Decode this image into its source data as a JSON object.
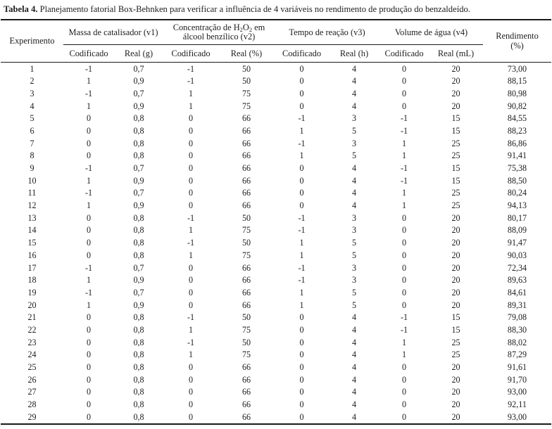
{
  "page": {
    "title_label": "Tabela 4.",
    "title_text": " Planejamento fatorial Box-Behnken para verificar a influência de 4 variáveis no rendimento de produção do benzaldeído."
  },
  "table": {
    "experiment_header": "Experimento",
    "group1": {
      "label": "Massa de catalisador (v1)",
      "sub1": "Codificado",
      "sub2": "Real (g)"
    },
    "group2": {
      "line1_prefix": "Concentração de H",
      "line1_sub1": "2",
      "line1_mid": "O",
      "line1_sub2": "2",
      "line1_suffix": " em",
      "line2": "álcool benzílico (v2)",
      "sub1": "Codificado",
      "sub2": "Real (%)"
    },
    "group3": {
      "label": "Tempo de reação (v3)",
      "sub1": "Codificado",
      "sub2": "Real (h)"
    },
    "group4": {
      "label": "Volume de água (v4)",
      "sub1": "Codificado",
      "sub2": "Real (mL)"
    },
    "yield_header_line1": "Rendimento",
    "yield_header_line2": "(%)",
    "rows": [
      [
        "1",
        "-1",
        "0,7",
        "-1",
        "50",
        "0",
        "4",
        "0",
        "20",
        "73,00"
      ],
      [
        "2",
        "1",
        "0,9",
        "-1",
        "50",
        "0",
        "4",
        "0",
        "20",
        "88,15"
      ],
      [
        "3",
        "-1",
        "0,7",
        "1",
        "75",
        "0",
        "4",
        "0",
        "20",
        "80,98"
      ],
      [
        "4",
        "1",
        "0,9",
        "1",
        "75",
        "0",
        "4",
        "0",
        "20",
        "90,82"
      ],
      [
        "5",
        "0",
        "0,8",
        "0",
        "66",
        "-1",
        "3",
        "-1",
        "15",
        "84,55"
      ],
      [
        "6",
        "0",
        "0,8",
        "0",
        "66",
        "1",
        "5",
        "-1",
        "15",
        "88,23"
      ],
      [
        "7",
        "0",
        "0,8",
        "0",
        "66",
        "-1",
        "3",
        "1",
        "25",
        "86,86"
      ],
      [
        "8",
        "0",
        "0,8",
        "0",
        "66",
        "1",
        "5",
        "1",
        "25",
        "91,41"
      ],
      [
        "9",
        "-1",
        "0,7",
        "0",
        "66",
        "0",
        "4",
        "-1",
        "15",
        "75,38"
      ],
      [
        "10",
        "1",
        "0,9",
        "0",
        "66",
        "0",
        "4",
        "-1",
        "15",
        "88,50"
      ],
      [
        "11",
        "-1",
        "0,7",
        "0",
        "66",
        "0",
        "4",
        "1",
        "25",
        "80,24"
      ],
      [
        "12",
        "1",
        "0,9",
        "0",
        "66",
        "0",
        "4",
        "1",
        "25",
        "94,13"
      ],
      [
        "13",
        "0",
        "0,8",
        "-1",
        "50",
        "-1",
        "3",
        "0",
        "20",
        "80,17"
      ],
      [
        "14",
        "0",
        "0,8",
        "1",
        "75",
        "-1",
        "3",
        "0",
        "20",
        "88,09"
      ],
      [
        "15",
        "0",
        "0,8",
        "-1",
        "50",
        "1",
        "5",
        "0",
        "20",
        "91,47"
      ],
      [
        "16",
        "0",
        "0,8",
        "1",
        "75",
        "1",
        "5",
        "0",
        "20",
        "90,03"
      ],
      [
        "17",
        "-1",
        "0,7",
        "0",
        "66",
        "-1",
        "3",
        "0",
        "20",
        "72,34"
      ],
      [
        "18",
        "1",
        "0,9",
        "0",
        "66",
        "-1",
        "3",
        "0",
        "20",
        "89,63"
      ],
      [
        "19",
        "-1",
        "0,7",
        "0",
        "66",
        "1",
        "5",
        "0",
        "20",
        "84,61"
      ],
      [
        "20",
        "1",
        "0,9",
        "0",
        "66",
        "1",
        "5",
        "0",
        "20",
        "89,31"
      ],
      [
        "21",
        "0",
        "0,8",
        "-1",
        "50",
        "0",
        "4",
        "-1",
        "15",
        "79,08"
      ],
      [
        "22",
        "0",
        "0,8",
        "1",
        "75",
        "0",
        "4",
        "-1",
        "15",
        "88,30"
      ],
      [
        "23",
        "0",
        "0,8",
        "-1",
        "50",
        "0",
        "4",
        "1",
        "25",
        "88,02"
      ],
      [
        "24",
        "0",
        "0,8",
        "1",
        "75",
        "0",
        "4",
        "1",
        "25",
        "87,29"
      ],
      [
        "25",
        "0",
        "0,8",
        "0",
        "66",
        "0",
        "4",
        "0",
        "20",
        "91,61"
      ],
      [
        "26",
        "0",
        "0,8",
        "0",
        "66",
        "0",
        "4",
        "0",
        "20",
        "91,70"
      ],
      [
        "27",
        "0",
        "0,8",
        "0",
        "66",
        "0",
        "4",
        "0",
        "20",
        "93,00"
      ],
      [
        "28",
        "0",
        "0,8",
        "0",
        "66",
        "0",
        "4",
        "0",
        "20",
        "92,11"
      ],
      [
        "29",
        "0",
        "0,8",
        "0",
        "66",
        "0",
        "4",
        "0",
        "20",
        "93,00"
      ]
    ]
  }
}
